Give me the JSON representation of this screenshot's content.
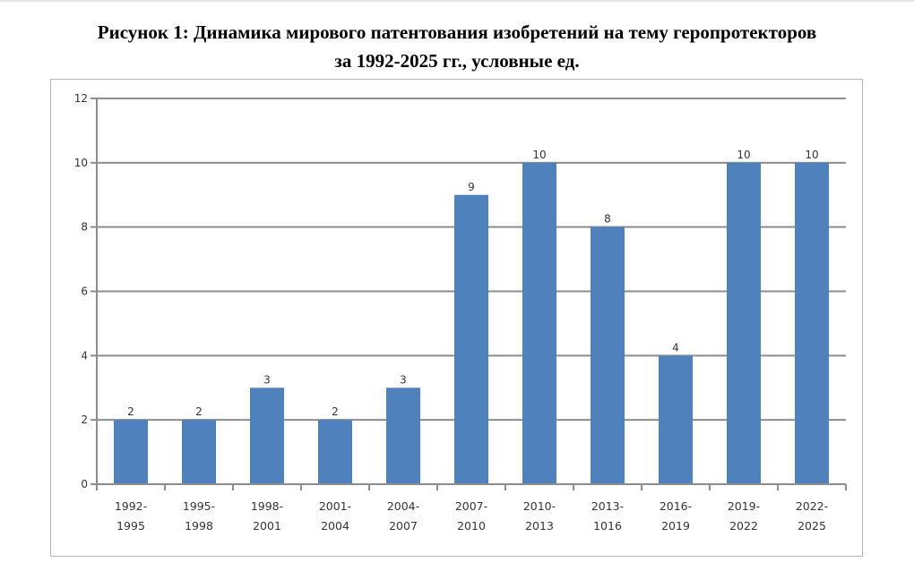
{
  "figure": {
    "title_line1": "Рисунок 1: Динамика мирового патентования изобретений на тему геропротекторов",
    "title_line2": "за 1992-2025 гг., условные ед."
  },
  "chart_data": {
    "type": "bar",
    "title": "Рисунок 1: Динамика мирового патентования изобретений на тему геропротекторов за 1992-2025 гг., условные ед.",
    "xlabel": "",
    "ylabel": "",
    "ylim": [
      0,
      12
    ],
    "yticks": [
      0,
      2,
      4,
      6,
      8,
      10,
      12
    ],
    "grid": true,
    "legend": null,
    "bar_color": "#4f81bd",
    "categories": [
      "1992-1995",
      "1995-1998",
      "1998-2001",
      "2001-2004",
      "2004-2007",
      "2007-2010",
      "2010-2013",
      "2013-1016",
      "2016-2019",
      "2019-2022",
      "2022-2025"
    ],
    "category_lines": [
      [
        "1992-",
        "1995"
      ],
      [
        "1995-",
        "1998"
      ],
      [
        "1998-",
        "2001"
      ],
      [
        "2001-",
        "2004"
      ],
      [
        "2004-",
        "2007"
      ],
      [
        "2007-",
        "2010"
      ],
      [
        "2010-",
        "2013"
      ],
      [
        "2013-",
        "1016"
      ],
      [
        "2016-",
        "2019"
      ],
      [
        "2019-",
        "2022"
      ],
      [
        "2022-",
        "2025"
      ]
    ],
    "values": [
      2,
      2,
      3,
      2,
      3,
      9,
      10,
      8,
      4,
      10,
      10
    ],
    "data_labels": true
  }
}
